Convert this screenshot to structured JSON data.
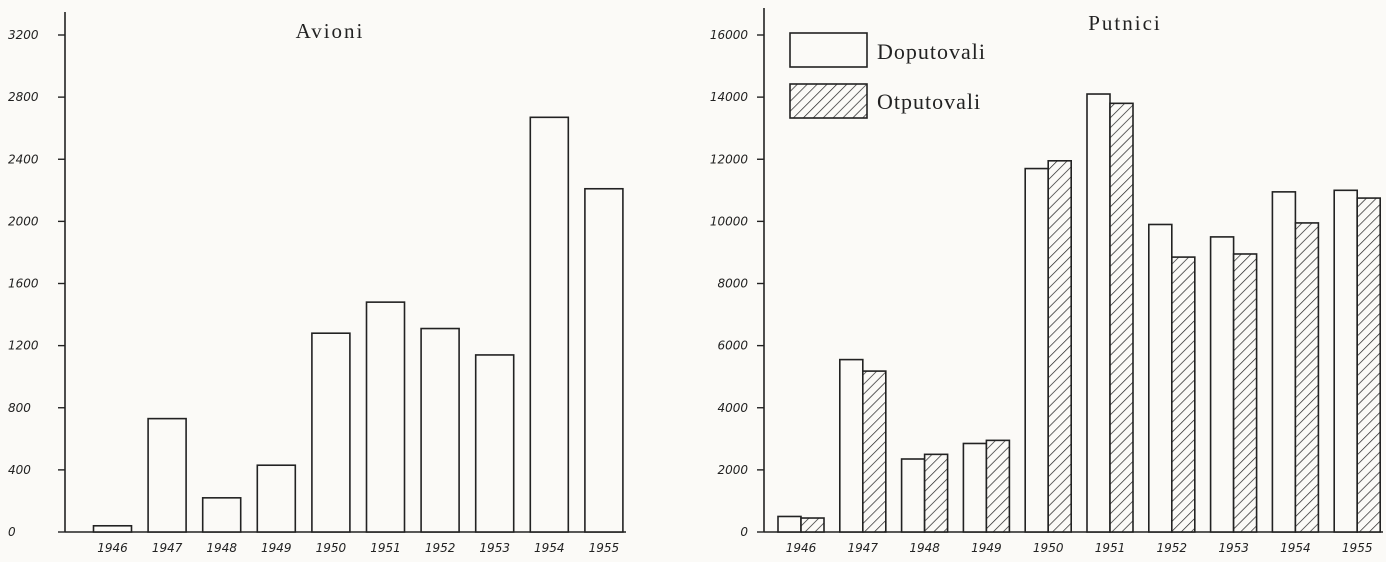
{
  "chart_data": [
    {
      "type": "bar",
      "title": "Avioni",
      "categories": [
        "1946",
        "1947",
        "1948",
        "1949",
        "1950",
        "1951",
        "1952",
        "1953",
        "1954",
        "1955"
      ],
      "values": [
        40,
        730,
        220,
        430,
        1280,
        1480,
        1310,
        1140,
        2670,
        2210
      ],
      "yticks": [
        "0",
        "400",
        "800",
        "1200",
        "1600",
        "2000",
        "2400",
        "2800",
        "3200"
      ],
      "ylim": [
        0,
        3200
      ],
      "grid": false
    },
    {
      "type": "bar",
      "title": "Putnici",
      "categories": [
        "1946",
        "1947",
        "1948",
        "1949",
        "1950",
        "1951",
        "1952",
        "1953",
        "1954",
        "1955"
      ],
      "series": [
        {
          "name": "Doputovali",
          "fill": "plain",
          "values": [
            500,
            5550,
            2350,
            2850,
            11700,
            14100,
            9900,
            9500,
            10950,
            11000
          ]
        },
        {
          "name": "Otputovali",
          "fill": "hatched",
          "values": [
            450,
            5180,
            2500,
            2950,
            11950,
            13800,
            8850,
            8950,
            9950,
            10750
          ]
        }
      ],
      "yticks": [
        "0",
        "2000",
        "4000",
        "6000",
        "8000",
        "10000",
        "12000",
        "14000",
        "16000"
      ],
      "ylim": [
        0,
        16000
      ],
      "legend_position": "top-left",
      "grid": false
    }
  ]
}
